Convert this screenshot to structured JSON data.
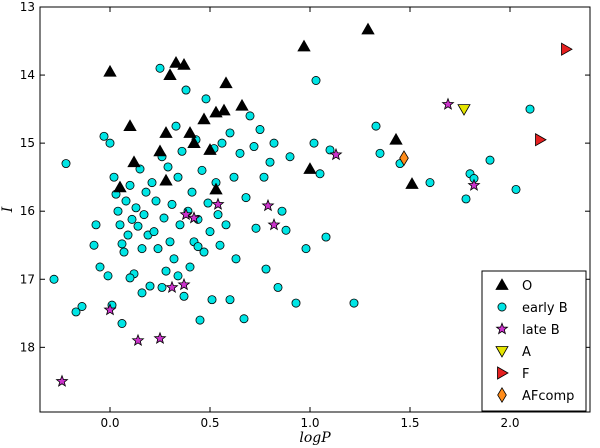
{
  "chart_data": {
    "type": "scatter",
    "xlabel": "logP",
    "ylabel": "I",
    "xlim": [
      -0.35,
      2.4
    ],
    "ylim": [
      18.95,
      13.0
    ],
    "y_inverted": true,
    "xticks": [
      0.0,
      0.5,
      1.0,
      1.5,
      2.0
    ],
    "xtick_labels": [
      "0.0",
      "0.5",
      "1.0",
      "1.5",
      "2.0"
    ],
    "yticks": [
      13,
      14,
      15,
      16,
      17,
      18
    ],
    "ytick_labels": [
      "13",
      "14",
      "15",
      "16",
      "17",
      "18"
    ],
    "grid": false,
    "legend_position": "lower-right",
    "series": [
      {
        "name": "O",
        "marker": "triangle-up",
        "color": "#000000",
        "points": [
          [
            0.0,
            13.95
          ],
          [
            0.1,
            14.75
          ],
          [
            0.12,
            15.28
          ],
          [
            0.05,
            15.65
          ],
          [
            0.3,
            14.0
          ],
          [
            0.33,
            13.82
          ],
          [
            0.37,
            13.85
          ],
          [
            0.28,
            14.85
          ],
          [
            0.4,
            14.85
          ],
          [
            0.53,
            14.55
          ],
          [
            0.47,
            14.65
          ],
          [
            0.57,
            14.52
          ],
          [
            0.58,
            14.12
          ],
          [
            0.66,
            14.45
          ],
          [
            0.25,
            15.12
          ],
          [
            0.42,
            15.0
          ],
          [
            0.5,
            15.1
          ],
          [
            0.53,
            15.68
          ],
          [
            0.28,
            15.55
          ],
          [
            0.97,
            13.58
          ],
          [
            1.29,
            13.33
          ],
          [
            1.0,
            15.38
          ],
          [
            1.43,
            14.95
          ],
          [
            1.51,
            15.6
          ]
        ]
      },
      {
        "name": "early B",
        "marker": "circle",
        "color": "#00e5e5",
        "points": [
          [
            -0.28,
            17.0
          ],
          [
            -0.22,
            15.3
          ],
          [
            -0.17,
            17.48
          ],
          [
            -0.14,
            17.4
          ],
          [
            -0.08,
            16.5
          ],
          [
            -0.05,
            16.82
          ],
          [
            -0.03,
            14.9
          ],
          [
            -0.01,
            16.95
          ],
          [
            0.0,
            15.0
          ],
          [
            0.02,
            15.5
          ],
          [
            0.03,
            15.75
          ],
          [
            0.04,
            16.0
          ],
          [
            0.05,
            16.2
          ],
          [
            0.06,
            16.48
          ],
          [
            0.07,
            16.6
          ],
          [
            0.08,
            15.85
          ],
          [
            0.09,
            16.35
          ],
          [
            0.1,
            15.62
          ],
          [
            0.11,
            16.12
          ],
          [
            0.12,
            16.92
          ],
          [
            0.13,
            15.95
          ],
          [
            0.14,
            16.22
          ],
          [
            0.15,
            15.38
          ],
          [
            0.16,
            16.55
          ],
          [
            0.17,
            16.05
          ],
          [
            0.18,
            15.72
          ],
          [
            0.19,
            16.35
          ],
          [
            0.2,
            17.1
          ],
          [
            0.21,
            15.58
          ],
          [
            0.22,
            16.3
          ],
          [
            0.23,
            15.85
          ],
          [
            0.24,
            16.55
          ],
          [
            0.25,
            13.9
          ],
          [
            0.26,
            15.2
          ],
          [
            0.27,
            16.1
          ],
          [
            0.28,
            16.88
          ],
          [
            0.29,
            15.35
          ],
          [
            0.3,
            16.45
          ],
          [
            0.31,
            15.9
          ],
          [
            0.32,
            16.7
          ],
          [
            0.33,
            14.75
          ],
          [
            0.34,
            15.5
          ],
          [
            0.35,
            16.2
          ],
          [
            0.36,
            15.12
          ],
          [
            0.37,
            17.25
          ],
          [
            0.38,
            14.22
          ],
          [
            0.39,
            16.0
          ],
          [
            0.4,
            16.82
          ],
          [
            0.41,
            15.72
          ],
          [
            0.42,
            16.45
          ],
          [
            0.43,
            14.95
          ],
          [
            0.44,
            16.12
          ],
          [
            0.45,
            17.6
          ],
          [
            0.46,
            15.4
          ],
          [
            0.47,
            16.6
          ],
          [
            0.48,
            14.35
          ],
          [
            0.49,
            15.88
          ],
          [
            0.5,
            16.3
          ],
          [
            0.51,
            17.3
          ],
          [
            0.52,
            15.08
          ],
          [
            0.53,
            15.58
          ],
          [
            0.54,
            16.05
          ],
          [
            0.55,
            16.5
          ],
          [
            0.56,
            15.0
          ],
          [
            0.58,
            16.2
          ],
          [
            0.6,
            14.85
          ],
          [
            0.62,
            15.5
          ],
          [
            0.63,
            16.7
          ],
          [
            0.65,
            15.15
          ],
          [
            0.67,
            17.58
          ],
          [
            0.68,
            15.8
          ],
          [
            0.7,
            14.6
          ],
          [
            0.72,
            15.05
          ],
          [
            0.73,
            16.25
          ],
          [
            0.75,
            14.8
          ],
          [
            0.77,
            15.5
          ],
          [
            0.78,
            16.85
          ],
          [
            0.8,
            15.28
          ],
          [
            0.82,
            15.0
          ],
          [
            0.84,
            17.12
          ],
          [
            0.86,
            16.0
          ],
          [
            0.88,
            16.28
          ],
          [
            0.9,
            15.2
          ],
          [
            0.93,
            17.35
          ],
          [
            0.98,
            16.55
          ],
          [
            1.03,
            14.08
          ],
          [
            1.02,
            15.0
          ],
          [
            1.05,
            15.45
          ],
          [
            1.08,
            16.38
          ],
          [
            1.1,
            15.1
          ],
          [
            1.22,
            17.35
          ],
          [
            1.33,
            14.75
          ],
          [
            1.35,
            15.15
          ],
          [
            1.45,
            15.3
          ],
          [
            1.6,
            15.58
          ],
          [
            1.78,
            15.82
          ],
          [
            1.8,
            15.45
          ],
          [
            1.82,
            15.52
          ],
          [
            1.9,
            15.25
          ],
          [
            2.03,
            15.68
          ],
          [
            2.1,
            14.5
          ],
          [
            0.06,
            17.65
          ],
          [
            0.1,
            16.98
          ],
          [
            0.16,
            17.2
          ],
          [
            0.26,
            17.12
          ],
          [
            0.34,
            16.95
          ],
          [
            0.44,
            16.52
          ],
          [
            0.6,
            17.3
          ],
          [
            0.01,
            17.38
          ],
          [
            -0.07,
            16.2
          ]
        ]
      },
      {
        "name": "late B",
        "marker": "star",
        "color": "#cc33cc",
        "points": [
          [
            -0.24,
            18.5
          ],
          [
            0.0,
            17.45
          ],
          [
            0.14,
            17.9
          ],
          [
            0.25,
            17.87
          ],
          [
            0.31,
            17.12
          ],
          [
            0.37,
            17.08
          ],
          [
            0.38,
            16.05
          ],
          [
            0.42,
            16.1
          ],
          [
            0.54,
            15.9
          ],
          [
            0.79,
            15.92
          ],
          [
            0.82,
            16.2
          ],
          [
            1.13,
            15.17
          ],
          [
            1.69,
            14.43
          ],
          [
            1.82,
            15.62
          ]
        ]
      },
      {
        "name": "A",
        "marker": "triangle-down",
        "color": "#e5e500",
        "points": [
          [
            1.77,
            14.5
          ]
        ]
      },
      {
        "name": "F",
        "marker": "triangle-right",
        "color": "#e52020",
        "points": [
          [
            2.28,
            13.62
          ],
          [
            2.15,
            14.95
          ]
        ]
      },
      {
        "name": "AFcomp",
        "marker": "diamond",
        "color": "#ff8c1a",
        "points": [
          [
            1.47,
            15.22
          ]
        ]
      }
    ]
  }
}
